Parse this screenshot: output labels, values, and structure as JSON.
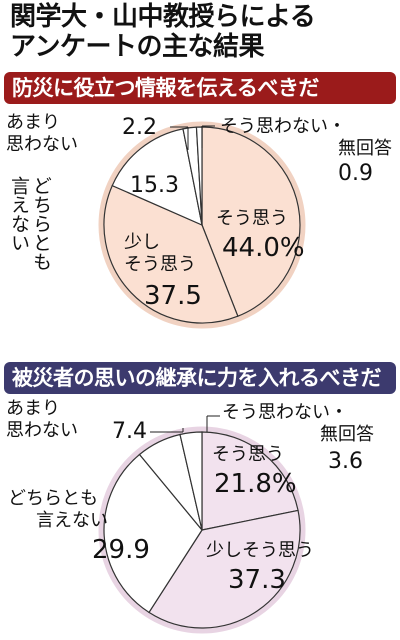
{
  "title_line1": "関学大・山中教授らによる",
  "title_line2": "アンケートの主な結果",
  "colors": {
    "banner1": "#9b1b1b",
    "banner2": "#3c3a6e",
    "pie1_fill": "#fbe0d2",
    "pie1_edge": "#e8b49a",
    "pie2_fill": "#f2e2ee",
    "pie2_edge": "#d9b8d0"
  },
  "chart_data": [
    {
      "type": "pie",
      "title": "防災に役立つ情報を伝えるべきだ",
      "slices": [
        {
          "label": "そう思う",
          "value": 44.0,
          "value_text": "44.0%"
        },
        {
          "label": "少しそう思う",
          "value": 37.5,
          "value_text": "37.5"
        },
        {
          "label": "どちらとも言えない",
          "value": 15.3,
          "value_text": "15.3"
        },
        {
          "label": "あまり思わない",
          "value": 2.2,
          "value_text": "2.2"
        },
        {
          "label": "そう思わない・無回答",
          "value": 0.9,
          "value_text": "0.9"
        }
      ],
      "label_lines": {
        "agree": "そう思う",
        "somewhat_1": "少し",
        "somewhat_2": "そう思う",
        "neutral_col1": "どちらとも",
        "neutral_col2": "言えない",
        "rarely_1": "あまり",
        "rarely_2": "思わない",
        "no_1": "そう思わない・",
        "no_2": "無回答"
      }
    },
    {
      "type": "pie",
      "title": "被災者の思いの継承に力を入れるべきだ",
      "slices": [
        {
          "label": "そう思う",
          "value": 21.8,
          "value_text": "21.8%"
        },
        {
          "label": "少しそう思う",
          "value": 37.3,
          "value_text": "37.3"
        },
        {
          "label": "どちらとも言えない",
          "value": 29.9,
          "value_text": "29.9"
        },
        {
          "label": "あまり思わない",
          "value": 7.4,
          "value_text": "7.4"
        },
        {
          "label": "そう思わない・無回答",
          "value": 3.6,
          "value_text": "3.6"
        }
      ],
      "label_lines": {
        "agree": "そう思う",
        "somewhat": "少しそう思う",
        "neutral_1": "どちらとも",
        "neutral_2": "言えない",
        "rarely_1": "あまり",
        "rarely_2": "思わない",
        "no_1": "そう思わない・",
        "no_2": "無回答"
      }
    }
  ]
}
